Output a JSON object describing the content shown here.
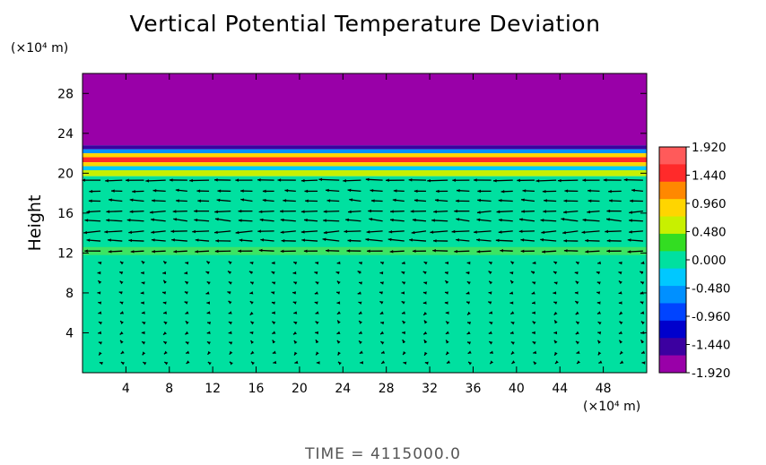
{
  "title": "Vertical Potential Temperature Deviation",
  "footer": "TIME = 4115000.0",
  "colors": {
    "background": "#ffffff",
    "upper_layer": "#9900a8",
    "field_base": "#33dd22",
    "vectors": "#000000"
  },
  "chart_data": {
    "type": "heatmap",
    "title": "Vertical Potential Temperature Deviation",
    "ylabel": "Height",
    "xlabel": "",
    "x_unit": "(×10⁴ m)",
    "y_unit": "(×10⁴ m)",
    "xlim": [
      0,
      52
    ],
    "ylim": [
      0,
      30
    ],
    "x_ticks": [
      4,
      8,
      12,
      16,
      20,
      24,
      28,
      32,
      36,
      40,
      44,
      48
    ],
    "x_tick_labels": [
      "4",
      "8",
      "12",
      "16",
      "20",
      "24",
      "28",
      "32",
      "36",
      "40",
      "44",
      "48"
    ],
    "y_ticks": [
      4,
      8,
      12,
      16,
      20,
      24,
      28
    ],
    "y_tick_labels": [
      "4",
      "8",
      "12",
      "16",
      "20",
      "24",
      "28"
    ],
    "colorbar": {
      "range": [
        -1.92,
        1.92
      ],
      "ticks": [
        1.92,
        1.44,
        0.96,
        0.48,
        0.0,
        -0.48,
        -0.96,
        -1.44,
        -1.92
      ],
      "tick_labels": [
        "1.920",
        "1.440",
        "0.960",
        "0.480",
        "0.000",
        "-0.480",
        "-0.960",
        "-1.440",
        "-1.920"
      ],
      "colors": [
        "#ff5a5a",
        "#ff2a2a",
        "#ff8800",
        "#ffd500",
        "#c8f000",
        "#33dd22",
        "#00e0a0",
        "#00c8ff",
        "#0090ff",
        "#0044ff",
        "#0000cc",
        "#3c00a0",
        "#9900a8"
      ]
    },
    "bands": [
      {
        "y0": 22.8,
        "y1": 30.0,
        "value": -1.92
      },
      {
        "y0": 22.4,
        "y1": 22.8,
        "value": -1.44
      },
      {
        "y0": 22.0,
        "y1": 22.4,
        "value": -0.6
      },
      {
        "y0": 21.6,
        "y1": 22.0,
        "value": 0.96
      },
      {
        "y0": 21.1,
        "y1": 21.6,
        "value": 1.6
      },
      {
        "y0": 20.7,
        "y1": 21.1,
        "value": 0.96
      },
      {
        "y0": 20.3,
        "y1": 20.7,
        "value": -0.3
      },
      {
        "y0": 19.7,
        "y1": 20.3,
        "value": 0.48
      },
      {
        "y0": 0.0,
        "y1": 19.7,
        "value": 0.05
      }
    ],
    "vectors": {
      "x_positions": [
        1,
        3,
        5,
        7,
        9,
        11,
        13,
        15,
        17,
        19,
        21,
        23,
        25,
        27,
        29,
        31,
        33,
        35,
        37,
        39,
        41,
        43,
        45,
        47,
        49,
        51
      ],
      "rows": [
        {
          "y": 19.3,
          "u": -2.4,
          "w": 0.0
        },
        {
          "y": 18.2,
          "u": -1.6,
          "w": 0.05
        },
        {
          "y": 17.2,
          "u": -1.7,
          "w": 0.15
        },
        {
          "y": 16.2,
          "u": -1.9,
          "w": -0.1
        },
        {
          "y": 15.2,
          "u": -2.0,
          "w": 0.2
        },
        {
          "y": 14.2,
          "u": -2.1,
          "w": -0.15
        },
        {
          "y": 13.2,
          "u": -2.0,
          "w": 0.15
        },
        {
          "y": 12.2,
          "u": -1.9,
          "w": 0.0
        },
        {
          "y": 11.0,
          "u": -0.3,
          "w": 0.1
        },
        {
          "y": 10.0,
          "u": -0.4,
          "w": 0.1
        },
        {
          "y": 9.0,
          "u": -0.3,
          "w": 0.2
        },
        {
          "y": 8.0,
          "u": -0.4,
          "w": 0.0
        },
        {
          "y": 7.0,
          "u": -0.35,
          "w": 0.1
        },
        {
          "y": 6.0,
          "u": -0.3,
          "w": -0.15
        },
        {
          "y": 5.0,
          "u": -0.25,
          "w": 0.2
        },
        {
          "y": 4.0,
          "u": -0.3,
          "w": -0.1
        },
        {
          "y": 3.0,
          "u": -0.25,
          "w": 0.25
        },
        {
          "y": 2.0,
          "u": -0.2,
          "w": -0.2
        },
        {
          "y": 1.0,
          "u": -0.15,
          "w": 0.0
        }
      ]
    }
  }
}
